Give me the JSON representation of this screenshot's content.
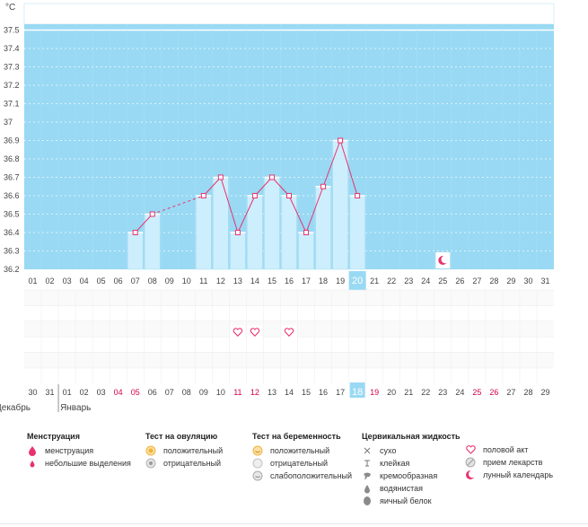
{
  "chart_data": {
    "type": "bar",
    "title": "",
    "ylabel": "°C",
    "xlabel": "",
    "ylim": [
      36.2,
      37.55
    ],
    "y_ticks": [
      "36.2",
      "36.3",
      "36.4",
      "36.5",
      "36.6",
      "36.7",
      "36.8",
      "36.9",
      "37",
      "37.1",
      "37.2",
      "37.3",
      "37.4",
      "37.5"
    ],
    "cover_line": 37.5,
    "x_cycle_days": [
      "01",
      "02",
      "03",
      "04",
      "05",
      "06",
      "07",
      "08",
      "09",
      "10",
      "11",
      "12",
      "13",
      "14",
      "15",
      "16",
      "17",
      "18",
      "19",
      "20",
      "21",
      "22",
      "23",
      "24",
      "25",
      "26",
      "27",
      "28",
      "29",
      "30",
      "31"
    ],
    "highlight_day_index": 19,
    "temperatures": [
      null,
      null,
      null,
      null,
      null,
      null,
      36.4,
      36.5,
      null,
      null,
      36.6,
      36.7,
      36.4,
      36.6,
      36.7,
      36.6,
      36.4,
      36.65,
      36.9,
      36.6,
      null,
      null,
      null,
      null,
      null,
      null,
      null,
      null,
      null,
      null,
      null
    ],
    "dashed_gap": [
      7,
      10
    ],
    "events": {
      "sex_days_index": [
        12,
        13,
        15
      ],
      "lunar_calendar_day_index": 24
    },
    "calendar_dates": [
      "30",
      "31",
      "01",
      "02",
      "03",
      "04",
      "05",
      "06",
      "07",
      "08",
      "09",
      "10",
      "11",
      "12",
      "13",
      "14",
      "15",
      "16",
      "17",
      "18",
      "19",
      "20",
      "21",
      "22",
      "23",
      "24",
      "25",
      "26",
      "27",
      "28",
      "29"
    ],
    "calendar_red_index": [
      5,
      6,
      12,
      13,
      20,
      26,
      27
    ],
    "calendar_highlight_index": 19,
    "months": [
      "Декабрь",
      "Январь"
    ],
    "colors": {
      "plot_bg": "#99d9f3",
      "bar_fill": "#cdeefc",
      "bar_edge": "#a5dcf2",
      "line": "#e8336f",
      "grid": "#ffffff",
      "highlight": "#99d9f3",
      "red_date": "#d6004d"
    }
  },
  "legend": {
    "menstruation": {
      "title": "Менструация",
      "items": [
        {
          "label": "менструация",
          "icon": "drop-large-icon"
        },
        {
          "label": "небольшие выделения",
          "icon": "drop-small-icon"
        }
      ]
    },
    "ovulation": {
      "title": "Тест на овуляцию",
      "items": [
        {
          "label": "положительный",
          "icon": "sun-positive-icon"
        },
        {
          "label": "отрицательный",
          "icon": "circle-negative-icon"
        }
      ]
    },
    "pregnancy": {
      "title": "Тест на беременность",
      "items": [
        {
          "label": "положительный",
          "icon": "smile-positive-icon"
        },
        {
          "label": "отрицательный",
          "icon": "circle-negative-icon"
        },
        {
          "label": "слабоположительный",
          "icon": "circle-weak-icon"
        }
      ]
    },
    "cervical": {
      "title": "Цервикальная жидкость",
      "items": [
        {
          "label": "сухо",
          "icon": "cross-icon"
        },
        {
          "label": "клейкая",
          "icon": "t-bar-icon"
        },
        {
          "label": "кремообразная",
          "icon": "cream-icon"
        },
        {
          "label": "водянистая",
          "icon": "drop-gray-icon"
        },
        {
          "label": "яичный белок",
          "icon": "oval-gray-icon"
        }
      ]
    },
    "other": {
      "items": [
        {
          "label": "половой акт",
          "icon": "heart-icon"
        },
        {
          "label": "прием лекарств",
          "icon": "pill-icon"
        },
        {
          "label": "лунный календарь",
          "icon": "moon-icon"
        }
      ]
    }
  }
}
